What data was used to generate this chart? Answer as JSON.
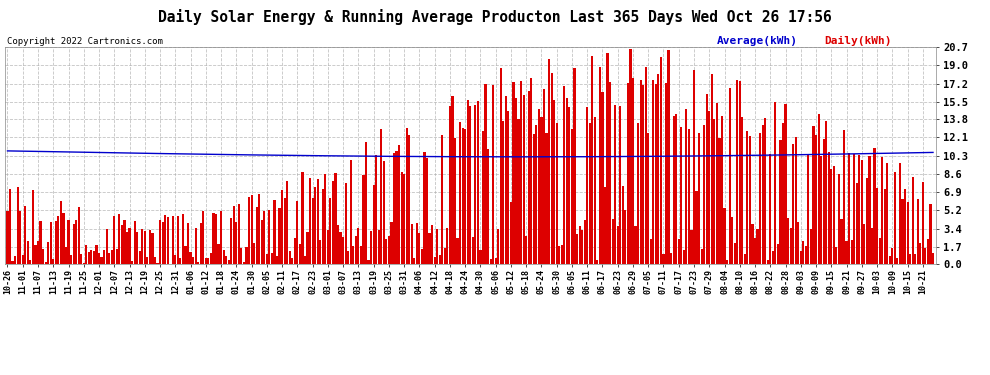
{
  "title": "Daily Solar Energy & Running Average Producton Last 365 Days Wed Oct 26 17:56",
  "copyright": "Copyright 2022 Cartronics.com",
  "legend_average": "Average(kWh)",
  "legend_daily": "Daily(kWh)",
  "bar_color": "#dd0000",
  "line_color": "#0000cc",
  "background_color": "#ffffff",
  "grid_color": "#aaaaaa",
  "ylim": [
    0.0,
    20.7
  ],
  "yticks": [
    0.0,
    1.7,
    3.4,
    5.2,
    6.9,
    8.6,
    10.3,
    12.1,
    13.8,
    15.5,
    17.2,
    19.0,
    20.7
  ],
  "num_days": 365,
  "seed": 12345
}
